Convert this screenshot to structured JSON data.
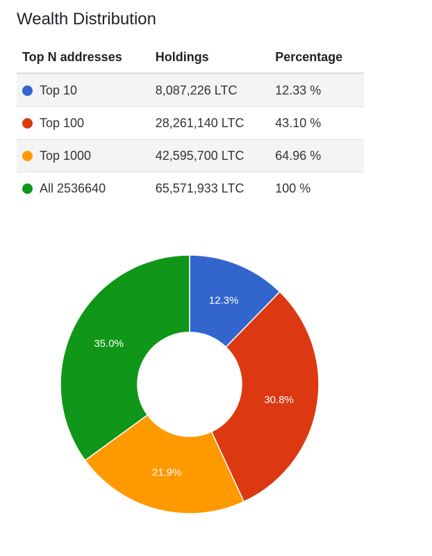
{
  "title": "Wealth Distribution",
  "table": {
    "headers": [
      "Top N addresses",
      "Holdings",
      "Percentage"
    ],
    "rows": [
      {
        "label": "Top 10",
        "holdings": "8,087,226 LTC",
        "percentage": "12.33 %",
        "color": "#3366cc"
      },
      {
        "label": "Top 100",
        "holdings": "28,261,140 LTC",
        "percentage": "43.10 %",
        "color": "#dc3912"
      },
      {
        "label": "Top 1000",
        "holdings": "42,595,700 LTC",
        "percentage": "64.96 %",
        "color": "#ff9900"
      },
      {
        "label": "All 2536640",
        "holdings": "65,571,933 LTC",
        "percentage": "100 %",
        "color": "#109618"
      }
    ]
  },
  "chart_data": {
    "type": "pie",
    "donut": true,
    "categories": [
      "Top 10",
      "Top 100",
      "Top 1000",
      "All 2536640"
    ],
    "values": [
      12.3,
      30.8,
      21.9,
      35.0
    ],
    "labels": [
      "12.3%",
      "30.8%",
      "21.9%",
      "35.0%"
    ],
    "colors": [
      "#3366cc",
      "#dc3912",
      "#ff9900",
      "#109618"
    ],
    "start_angle": "12 o'clock",
    "direction": "clockwise"
  }
}
